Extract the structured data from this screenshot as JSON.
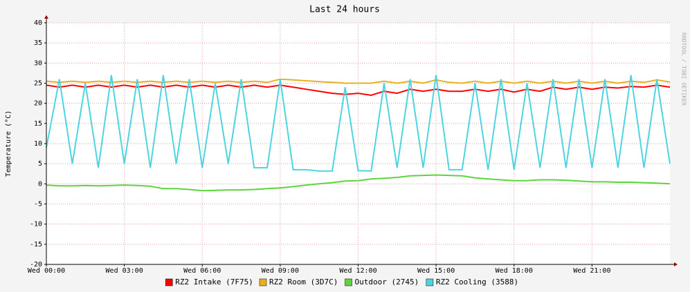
{
  "chart_data": {
    "type": "line",
    "title": "Last 24 hours",
    "y_label": "Temperature (°C)",
    "watermark": "RRDTOOL / TOBI OETIKER",
    "x": [
      0,
      0.5,
      1,
      1.5,
      2,
      2.5,
      3,
      3.5,
      4,
      4.5,
      5,
      5.5,
      6,
      6.5,
      7,
      7.5,
      8,
      8.5,
      9,
      9.5,
      10,
      10.5,
      11,
      11.5,
      12,
      12.5,
      13,
      13.5,
      14,
      14.5,
      15,
      15.5,
      16,
      16.5,
      17,
      17.5,
      18,
      18.5,
      19,
      19.5,
      20,
      20.5,
      21,
      21.5,
      22,
      22.5,
      23,
      23.5,
      24
    ],
    "xlim": [
      0,
      24
    ],
    "xticks": [
      {
        "value": 0,
        "label": "Wed 00:00"
      },
      {
        "value": 3,
        "label": "Wed 03:00"
      },
      {
        "value": 6,
        "label": "Wed 06:00"
      },
      {
        "value": 9,
        "label": "Wed 09:00"
      },
      {
        "value": 12,
        "label": "Wed 12:00"
      },
      {
        "value": 15,
        "label": "Wed 15:00"
      },
      {
        "value": 18,
        "label": "Wed 18:00"
      },
      {
        "value": 21,
        "label": "Wed 21:00"
      }
    ],
    "ylim": [
      -20,
      40
    ],
    "yticks": [
      -20,
      -15,
      -10,
      -5,
      0,
      5,
      10,
      15,
      20,
      25,
      30,
      35,
      40
    ],
    "grid": true,
    "legend": "bottom",
    "series": [
      {
        "name": "RZ2 Intake (7F75)",
        "color": "#ff0000",
        "values": [
          24.5,
          24,
          24.5,
          24,
          24.5,
          24,
          24.5,
          24,
          24.5,
          24,
          24.5,
          24,
          24.5,
          24,
          24.5,
          24,
          24.5,
          24,
          24.5,
          24,
          23.5,
          23,
          22.5,
          22.2,
          22.5,
          22,
          23,
          22.5,
          23.5,
          23,
          23.5,
          23,
          23,
          23.5,
          23,
          23.5,
          22.8,
          23.5,
          23,
          24,
          23.5,
          24,
          23.5,
          24,
          23.8,
          24.2,
          24,
          24.5,
          24
        ]
      },
      {
        "name": "RZ2 Room (3D7C)",
        "color": "#e8b020",
        "values": [
          25.5,
          25.2,
          25.5,
          25.2,
          25.5,
          25.2,
          25.5,
          25.2,
          25.5,
          25.2,
          25.5,
          25.2,
          25.5,
          25.2,
          25.5,
          25.2,
          25.5,
          25.2,
          26,
          25.8,
          25.6,
          25.4,
          25.2,
          25,
          25,
          25,
          25.5,
          25,
          25.5,
          25,
          25.8,
          25.2,
          25,
          25.5,
          25,
          25.5,
          25,
          25.5,
          25,
          25.5,
          25,
          25.5,
          25,
          25.5,
          25,
          25.5,
          25.2,
          25.8,
          25.3
        ]
      },
      {
        "name": "Outdoor (2745)",
        "color": "#5cd43c",
        "values": [
          -0.3,
          -0.5,
          -0.5,
          -0.4,
          -0.5,
          -0.4,
          -0.3,
          -0.4,
          -0.6,
          -1.2,
          -1.2,
          -1.4,
          -1.7,
          -1.6,
          -1.5,
          -1.5,
          -1.4,
          -1.2,
          -1,
          -0.7,
          -0.3,
          0,
          0.3,
          0.7,
          0.8,
          1.2,
          1.4,
          1.6,
          2,
          2.1,
          2.2,
          2.1,
          2,
          1.5,
          1.2,
          1,
          0.8,
          0.8,
          1,
          1,
          0.9,
          0.7,
          0.5,
          0.5,
          0.4,
          0.4,
          0.3,
          0.2,
          0
        ]
      },
      {
        "name": "RZ2 Cooling (3588)",
        "color": "#4cd4e0",
        "values": [
          9,
          26,
          5,
          25,
          4,
          27,
          5,
          26,
          4,
          27,
          5,
          26,
          4,
          25,
          5,
          26,
          4,
          4,
          26,
          3.5,
          3.5,
          3.2,
          3.2,
          24,
          3.3,
          3.2,
          25,
          4,
          26,
          4,
          27,
          3.5,
          3.5,
          25,
          3.5,
          26,
          3.5,
          25,
          4,
          26,
          4,
          26,
          4,
          26,
          4,
          27,
          4,
          26,
          5
        ]
      }
    ]
  }
}
